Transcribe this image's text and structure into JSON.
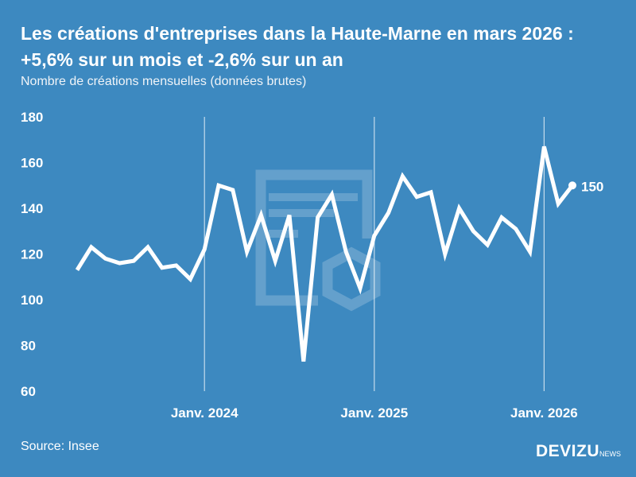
{
  "title": "Les créations d'entreprises dans la Haute-Marne en mars 2026 : +5,6% sur un mois et -2,6% sur un an",
  "subtitle": "Nombre de créations mensuelles (données brutes)",
  "source": "Source: Insee",
  "logo": {
    "main": "DEVIZU",
    "suffix": "NEWS"
  },
  "colors": {
    "background": "#3d89c0",
    "line": "#ffffff"
  },
  "chart_data": {
    "type": "line",
    "title": "Les créations d'entreprises dans la Haute-Marne en mars 2026 : +5,6% sur un mois et -2,6% sur un an",
    "ylabel": "",
    "xlabel": "",
    "ylim": [
      60,
      180
    ],
    "yticks": [
      "60",
      "80",
      "100",
      "120",
      "140",
      "160",
      "180"
    ],
    "xticks": [
      "Janv. 2024",
      "Janv. 2025",
      "Janv. 2026"
    ],
    "grid": "vertical lines at January",
    "x": [
      "2023-04",
      "2023-05",
      "2023-06",
      "2023-07",
      "2023-08",
      "2023-09",
      "2023-10",
      "2023-11",
      "2023-12",
      "2024-01",
      "2024-02",
      "2024-03",
      "2024-04",
      "2024-05",
      "2024-06",
      "2024-07",
      "2024-08",
      "2024-09",
      "2024-10",
      "2024-11",
      "2024-12",
      "2025-01",
      "2025-02",
      "2025-03",
      "2025-04",
      "2025-05",
      "2025-06",
      "2025-07",
      "2025-08",
      "2025-09",
      "2025-10",
      "2025-11",
      "2025-12",
      "2026-01",
      "2026-02",
      "2026-03"
    ],
    "values": [
      113,
      123,
      118,
      116,
      117,
      123,
      114,
      115,
      109,
      122,
      150,
      148,
      121,
      137,
      117,
      137,
      73,
      136,
      146,
      121,
      105,
      128,
      138,
      154,
      145,
      147,
      120,
      140,
      130,
      124,
      136,
      131,
      121,
      167,
      142,
      150
    ],
    "last_label": "150"
  }
}
